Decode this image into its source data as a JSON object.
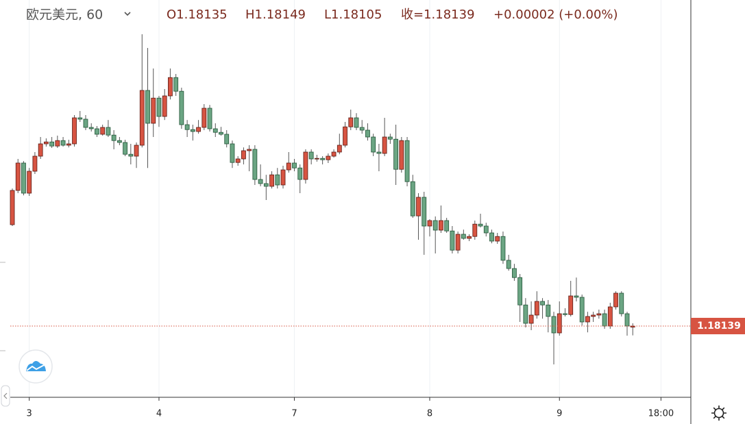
{
  "chart_data": {
    "type": "candlestick",
    "header": {
      "symbol": "欧元美元, 60",
      "open": "O1.18135",
      "high": "H1.18149",
      "low": "L1.18105",
      "close": "收=1.18139",
      "change": "+0.00002 (+0.00%)"
    },
    "last_price": {
      "value": 1.18139,
      "label": "1.18139"
    },
    "up_color": "#d75442",
    "down_color": "#6ba583",
    "up_border": "#5b1a13",
    "down_border": "#225437",
    "wick_color": "#555555",
    "grid": true,
    "ylim": [
      1.17879,
      1.19329
    ],
    "xlim": [
      -0.365,
      120.3
    ],
    "xticks": [
      3,
      {
        "value": 26,
        "label": "4"
      },
      {
        "value": 50,
        "label": "7"
      },
      {
        "value": 74,
        "label": "8"
      },
      {
        "value": 97,
        "label": "9"
      },
      {
        "value": 115,
        "label": "18:00"
      }
    ],
    "ohlc": [
      [
        1.18509,
        1.18641,
        1.18504,
        1.18634
      ],
      [
        1.18634,
        1.18749,
        1.18624,
        1.18734
      ],
      [
        1.18734,
        1.18741,
        1.18616,
        1.18624
      ],
      [
        1.18624,
        1.18716,
        1.18614,
        1.18704
      ],
      [
        1.18704,
        1.18774,
        1.18694,
        1.18759
      ],
      [
        1.18759,
        1.18829,
        1.18749,
        1.18804
      ],
      [
        1.18804,
        1.18824,
        1.18794,
        1.18811
      ],
      [
        1.18811,
        1.18829,
        1.18789,
        1.18796
      ],
      [
        1.18796,
        1.18834,
        1.18789,
        1.18816
      ],
      [
        1.18816,
        1.18829,
        1.18794,
        1.18799
      ],
      [
        1.18799,
        1.18819,
        1.18791,
        1.18804
      ],
      [
        1.18804,
        1.18909,
        1.18794,
        1.18899
      ],
      [
        1.18899,
        1.18924,
        1.18884,
        1.18894
      ],
      [
        1.18894,
        1.18909,
        1.18854,
        1.18864
      ],
      [
        1.18864,
        1.18879,
        1.18849,
        1.18859
      ],
      [
        1.18859,
        1.18869,
        1.18829,
        1.18839
      ],
      [
        1.18839,
        1.18874,
        1.18834,
        1.18864
      ],
      [
        1.18864,
        1.18891,
        1.18829,
        1.18836
      ],
      [
        1.18836,
        1.18854,
        1.18784,
        1.18816
      ],
      [
        1.18816,
        1.18829,
        1.18799,
        1.18809
      ],
      [
        1.18809,
        1.18819,
        1.18759,
        1.18766
      ],
      [
        1.18766,
        1.18804,
        1.18729,
        1.18759
      ],
      [
        1.18759,
        1.18809,
        1.18716,
        1.18799
      ],
      [
        1.18799,
        1.19204,
        1.18791,
        1.18999
      ],
      [
        1.18999,
        1.19154,
        1.18716,
        1.18879
      ],
      [
        1.18879,
        1.19079,
        1.18829,
        1.18971
      ],
      [
        1.18971,
        1.18979,
        1.18866,
        1.18904
      ],
      [
        1.18904,
        1.19004,
        1.18891,
        1.18979
      ],
      [
        1.18979,
        1.19079,
        1.18966,
        1.19046
      ],
      [
        1.19046,
        1.19059,
        1.18979,
        1.18996
      ],
      [
        1.18996,
        1.19009,
        1.18859,
        1.18874
      ],
      [
        1.18874,
        1.18891,
        1.18829,
        1.18856
      ],
      [
        1.18856,
        1.18874,
        1.18816,
        1.18849
      ],
      [
        1.18849,
        1.18891,
        1.18841,
        1.18864
      ],
      [
        1.18864,
        1.18949,
        1.18854,
        1.18934
      ],
      [
        1.18934,
        1.18946,
        1.18849,
        1.18859
      ],
      [
        1.18859,
        1.18879,
        1.18829,
        1.18846
      ],
      [
        1.18846,
        1.18866,
        1.18834,
        1.18839
      ],
      [
        1.18839,
        1.18854,
        1.18791,
        1.18804
      ],
      [
        1.18804,
        1.18816,
        1.18716,
        1.18736
      ],
      [
        1.18736,
        1.18759,
        1.18724,
        1.18749
      ],
      [
        1.18749,
        1.18791,
        1.18729,
        1.18779
      ],
      [
        1.18779,
        1.18799,
        1.18704,
        1.18784
      ],
      [
        1.18784,
        1.18799,
        1.18654,
        1.18674
      ],
      [
        1.18674,
        1.18729,
        1.18649,
        1.18659
      ],
      [
        1.18659,
        1.18691,
        1.18599,
        1.18649
      ],
      [
        1.18649,
        1.18704,
        1.18641,
        1.18691
      ],
      [
        1.18691,
        1.18716,
        1.18641,
        1.18654
      ],
      [
        1.18654,
        1.18724,
        1.18641,
        1.18709
      ],
      [
        1.18709,
        1.18774,
        1.18699,
        1.18734
      ],
      [
        1.18734,
        1.18749,
        1.18704,
        1.18716
      ],
      [
        1.18716,
        1.18729,
        1.18624,
        1.18674
      ],
      [
        1.18674,
        1.18784,
        1.18659,
        1.18774
      ],
      [
        1.18774,
        1.18784,
        1.18729,
        1.18749
      ],
      [
        1.18749,
        1.18764,
        1.18739,
        1.18751
      ],
      [
        1.18751,
        1.18759,
        1.18729,
        1.18746
      ],
      [
        1.18746,
        1.18769,
        1.18734,
        1.18759
      ],
      [
        1.18759,
        1.18784,
        1.18754,
        1.18774
      ],
      [
        1.18774,
        1.18841,
        1.18766,
        1.18799
      ],
      [
        1.18799,
        1.18884,
        1.18791,
        1.18866
      ],
      [
        1.18866,
        1.18929,
        1.18854,
        1.18899
      ],
      [
        1.18899,
        1.18916,
        1.18854,
        1.18864
      ],
      [
        1.18864,
        1.18891,
        1.18841,
        1.18854
      ],
      [
        1.18854,
        1.18879,
        1.18816,
        1.18829
      ],
      [
        1.18829,
        1.18841,
        1.18759,
        1.18774
      ],
      [
        1.18774,
        1.18804,
        1.18704,
        1.18769
      ],
      [
        1.18769,
        1.18899,
        1.18759,
        1.18829
      ],
      [
        1.18829,
        1.18841,
        1.18804,
        1.18821
      ],
      [
        1.18821,
        1.18874,
        1.18654,
        1.18711
      ],
      [
        1.18711,
        1.18829,
        1.18699,
        1.18816
      ],
      [
        1.18816,
        1.18829,
        1.18649,
        1.18666
      ],
      [
        1.18666,
        1.18691,
        1.18534,
        1.18541
      ],
      [
        1.18541,
        1.18624,
        1.18454,
        1.18609
      ],
      [
        1.18609,
        1.18629,
        1.18399,
        1.18504
      ],
      [
        1.18504,
        1.18529,
        1.18466,
        1.18524
      ],
      [
        1.18524,
        1.18539,
        1.18404,
        1.18489
      ],
      [
        1.18489,
        1.18579,
        1.18479,
        1.18524
      ],
      [
        1.18524,
        1.18534,
        1.18479,
        1.18486
      ],
      [
        1.18486,
        1.18504,
        1.18404,
        1.18416
      ],
      [
        1.18416,
        1.18484,
        1.18404,
        1.18474
      ],
      [
        1.18474,
        1.18491,
        1.18454,
        1.18459
      ],
      [
        1.18459,
        1.18474,
        1.18449,
        1.18466
      ],
      [
        1.18466,
        1.18524,
        1.18454,
        1.18511
      ],
      [
        1.18511,
        1.18549,
        1.18499,
        1.18504
      ],
      [
        1.18504,
        1.18516,
        1.18466,
        1.18479
      ],
      [
        1.18479,
        1.18491,
        1.18441,
        1.18449
      ],
      [
        1.18449,
        1.18479,
        1.18439,
        1.18466
      ],
      [
        1.18466,
        1.18484,
        1.18366,
        1.18379
      ],
      [
        1.18379,
        1.18399,
        1.18341,
        1.18349
      ],
      [
        1.18349,
        1.18366,
        1.18304,
        1.18316
      ],
      [
        1.18316,
        1.18329,
        1.18154,
        1.18216
      ],
      [
        1.18216,
        1.18241,
        1.18134,
        1.18149
      ],
      [
        1.18149,
        1.18229,
        1.18124,
        1.18179
      ],
      [
        1.18179,
        1.18266,
        1.18166,
        1.18229
      ],
      [
        1.18229,
        1.18241,
        1.18166,
        1.18216
      ],
      [
        1.18216,
        1.18234,
        1.18116,
        1.18174
      ],
      [
        1.18174,
        1.18191,
        1.17999,
        1.18114
      ],
      [
        1.18114,
        1.18229,
        1.18104,
        1.18184
      ],
      [
        1.18184,
        1.18204,
        1.18174,
        1.18181
      ],
      [
        1.18181,
        1.18304,
        1.18174,
        1.18249
      ],
      [
        1.18249,
        1.18316,
        1.18229,
        1.18244
      ],
      [
        1.18244,
        1.18254,
        1.18141,
        1.18154
      ],
      [
        1.18154,
        1.18191,
        1.18116,
        1.18174
      ],
      [
        1.18174,
        1.18191,
        1.18154,
        1.18179
      ],
      [
        1.18179,
        1.18199,
        1.18166,
        1.18184
      ],
      [
        1.18184,
        1.18199,
        1.18129,
        1.18139
      ],
      [
        1.18139,
        1.18224,
        1.18129,
        1.18209
      ],
      [
        1.18209,
        1.18266,
        1.18199,
        1.18259
      ],
      [
        1.18259,
        1.18266,
        1.18174,
        1.18184
      ],
      [
        1.18184,
        1.18191,
        1.18104,
        1.18139
      ],
      [
        1.18135,
        1.18149,
        1.18105,
        1.18139
      ]
    ]
  }
}
